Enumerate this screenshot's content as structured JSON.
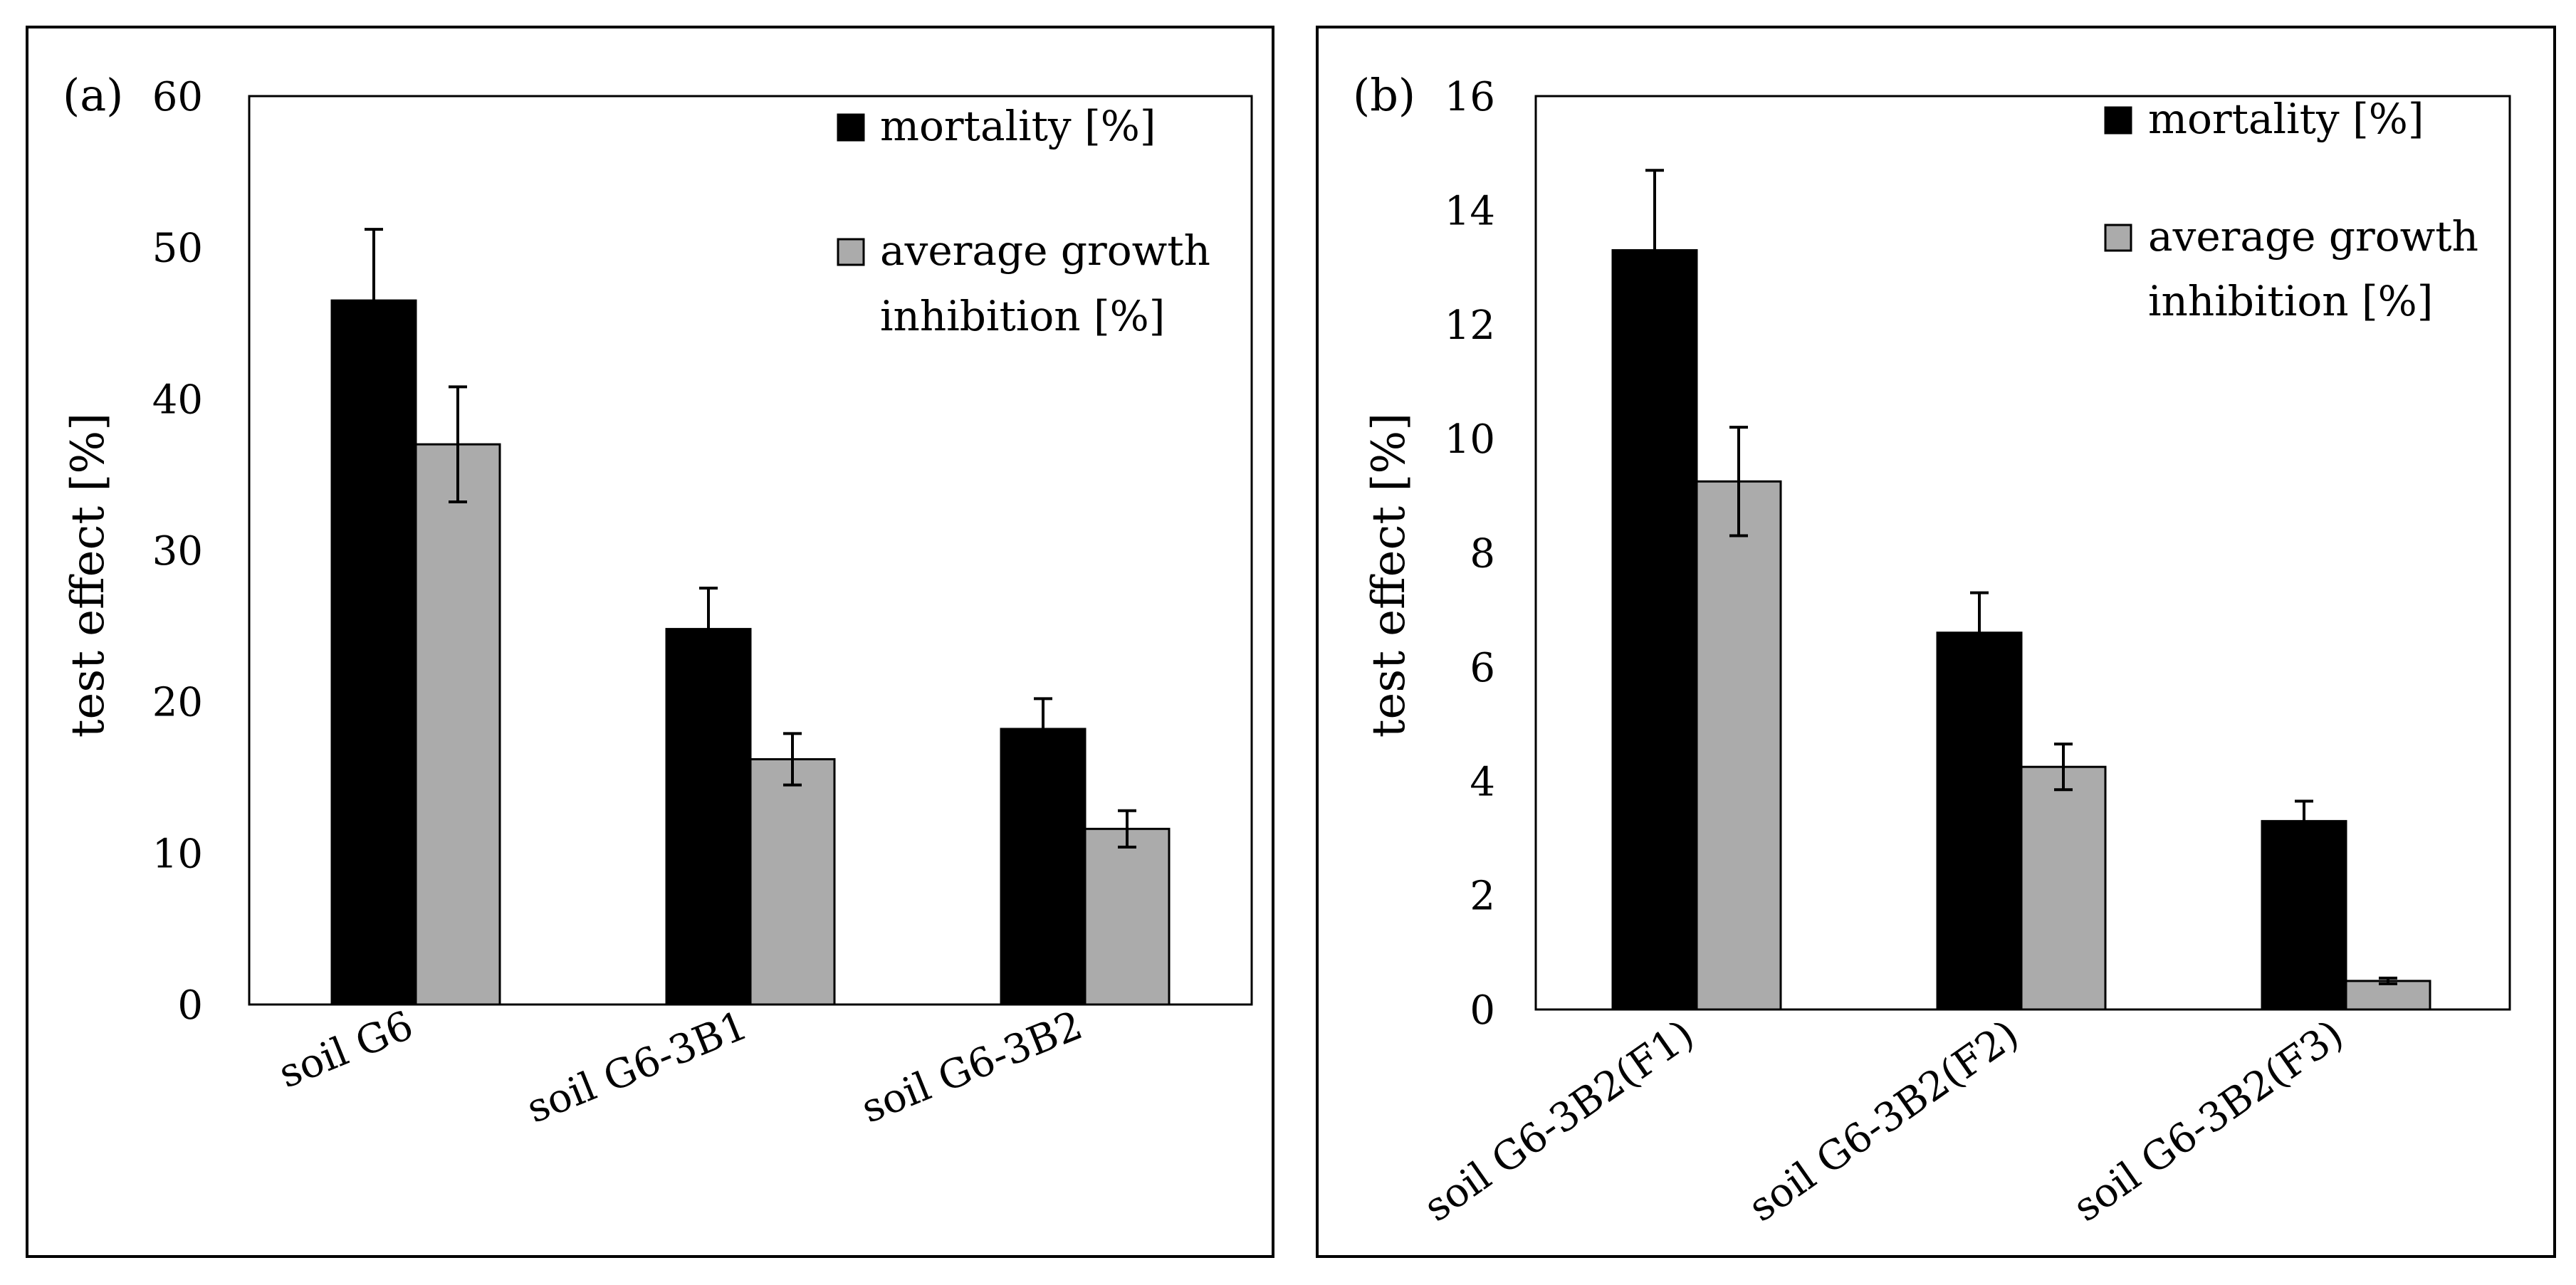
{
  "chart_data": [
    {
      "type": "bar",
      "panel_label": "(a)",
      "categories": [
        "soil G6",
        "soil G6-3B1",
        "soil G6-3B2"
      ],
      "series": [
        {
          "name": "mortality [%]",
          "color": "#000000",
          "values": [
            46.5,
            24.8,
            18.2
          ],
          "errors": [
            4.7,
            2.7,
            2.0
          ]
        },
        {
          "name": "average growth inhibition [%]",
          "legend_lines": [
            "average growth",
            "inhibition [%]"
          ],
          "color": "#ABABAB",
          "values": [
            37.0,
            16.2,
            11.6
          ],
          "errors": [
            3.8,
            1.7,
            1.2
          ]
        }
      ],
      "ylabel": "test effect [%]",
      "ylim": [
        0,
        60
      ],
      "yticks": [
        0,
        10,
        20,
        30,
        40,
        50,
        60
      ],
      "grid": false,
      "legend_position": "top-right"
    },
    {
      "type": "bar",
      "panel_label": "(b)",
      "categories": [
        "soil G6-3B2(F1)",
        "soil G6-3B2(F2)",
        "soil G6-3B2(F3)"
      ],
      "series": [
        {
          "name": "mortality [%]",
          "color": "#000000",
          "values": [
            13.3,
            6.6,
            3.3
          ],
          "errors": [
            1.4,
            0.7,
            0.35
          ]
        },
        {
          "name": "average growth inhibition [%]",
          "legend_lines": [
            "average growth",
            "inhibition [%]"
          ],
          "color": "#ABABAB",
          "values": [
            9.25,
            4.25,
            0.5
          ],
          "errors": [
            0.95,
            0.4,
            0.05
          ]
        }
      ],
      "ylabel": "test effect [%]",
      "ylim": [
        0,
        16
      ],
      "yticks": [
        0,
        2,
        4,
        6,
        8,
        10,
        12,
        14,
        16
      ],
      "grid": false,
      "legend_position": "top-right"
    }
  ]
}
